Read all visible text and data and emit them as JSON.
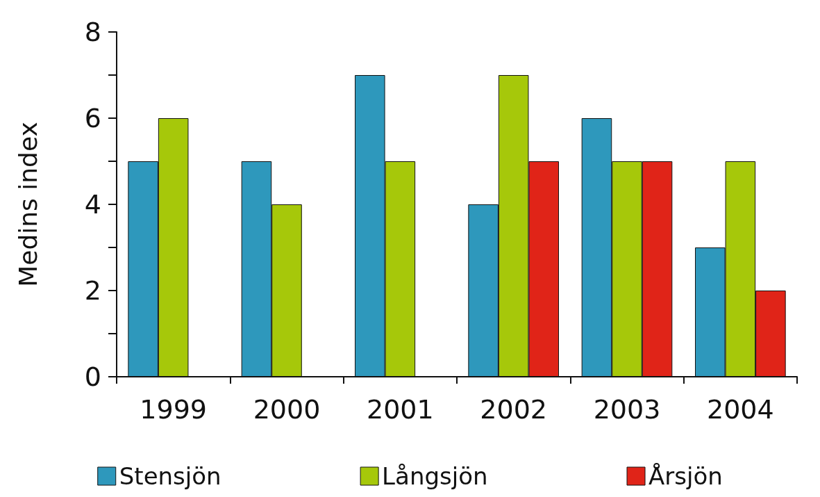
{
  "chart_data": {
    "type": "bar",
    "ylabel": "Medins index",
    "categories": [
      "1999",
      "2000",
      "2001",
      "2002",
      "2003",
      "2004"
    ],
    "series": [
      {
        "name": "Stensjön",
        "color": "#2e98bc",
        "values": [
          5,
          5,
          7,
          4,
          6,
          3
        ]
      },
      {
        "name": "Långsjön",
        "color": "#a6c80a",
        "values": [
          6,
          4,
          5,
          7,
          5,
          5
        ]
      },
      {
        "name": "Årsjön",
        "color": "#e02418",
        "values": [
          null,
          null,
          null,
          5,
          5,
          2
        ]
      }
    ],
    "ylim": [
      0,
      8
    ],
    "yticks": [
      0,
      {
        "value": 1,
        "label": null
      },
      2,
      {
        "value": 3,
        "label": null
      },
      4,
      {
        "value": 5,
        "label": null
      },
      6,
      {
        "value": 7,
        "label": null
      },
      8
    ],
    "grid": false,
    "legend": "bottom"
  }
}
